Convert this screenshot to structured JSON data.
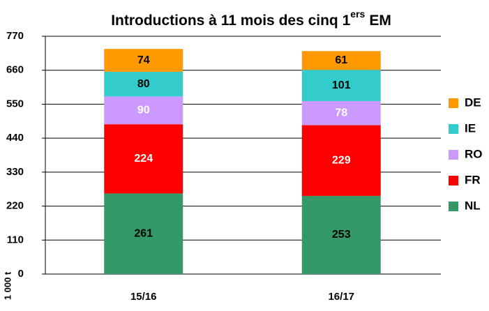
{
  "chart_data": {
    "type": "stacked_bar",
    "title": "Introductions à 11 mois des cinq 1",
    "title_superscript": "ers",
    "title_suffix": "EM",
    "y_axis_label": "1 000 t",
    "categories": [
      "15/16",
      "16/17"
    ],
    "series": [
      {
        "name": "NL",
        "color": "#339966",
        "label_color": "#000000",
        "values": [
          261,
          253
        ]
      },
      {
        "name": "FR",
        "color": "#ff0000",
        "label_color": "#ffffff",
        "values": [
          224,
          229
        ]
      },
      {
        "name": "RO",
        "color": "#cc99ff",
        "label_color": "#ffffff",
        "values": [
          90,
          78
        ]
      },
      {
        "name": "IE",
        "color": "#33cccc",
        "label_color": "#000000",
        "values": [
          80,
          101
        ]
      },
      {
        "name": "DE",
        "color": "#ff9900",
        "label_color": "#000000",
        "values": [
          74,
          61
        ]
      }
    ],
    "ylim": [
      0,
      770
    ],
    "yticks": [
      0,
      110,
      220,
      330,
      440,
      550,
      660,
      770
    ],
    "grid": true,
    "legend": "right"
  }
}
